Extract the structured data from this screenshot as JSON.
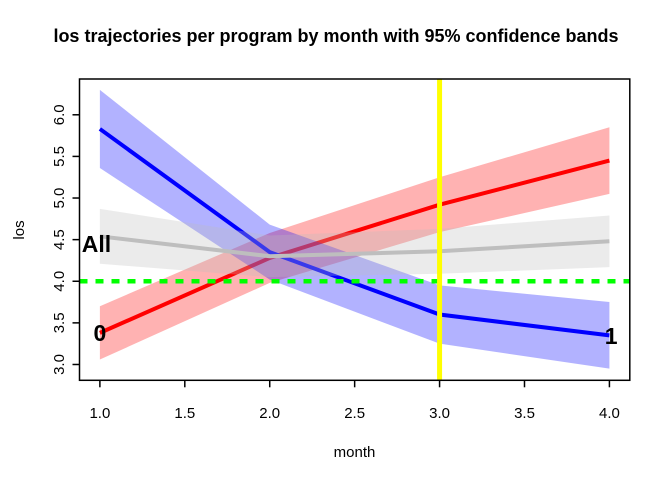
{
  "title": "los trajectories per program by month with 95% confidence bands",
  "x_axis": {
    "label": "month",
    "ticks": [
      "1.0",
      "1.5",
      "2.0",
      "2.5",
      "3.0",
      "3.5",
      "4.0"
    ],
    "values": [
      1,
      1.5,
      2,
      2.5,
      3,
      3.5,
      4
    ]
  },
  "y_axis": {
    "label": "los",
    "ticks": [
      "3.0",
      "3.5",
      "4.0",
      "4.5",
      "5.0",
      "5.5",
      "6.0"
    ],
    "values": [
      3,
      3.5,
      4,
      4.5,
      5,
      5.5,
      6
    ]
  },
  "chart_data": {
    "type": "line",
    "title": "los trajectories per program by month with 95% confidence bands",
    "xlabel": "month",
    "ylabel": "los",
    "x": [
      1,
      2,
      3,
      4
    ],
    "xlim": [
      0.88,
      4.12
    ],
    "ylim": [
      2.81,
      6.43
    ],
    "grid": false,
    "legend": "none",
    "series": [
      {
        "id": "program-0",
        "name": "program 0",
        "color": "#FF0000",
        "band_opacity": 0.3,
        "fit": [
          3.38,
          4.28,
          4.92,
          5.45
        ],
        "lower": [
          3.06,
          3.98,
          4.59,
          5.05
        ],
        "upper": [
          3.7,
          4.58,
          5.25,
          5.85
        ],
        "label": {
          "text": "0",
          "x": 1.0,
          "y": 3.38
        }
      },
      {
        "id": "program-1",
        "name": "program 1",
        "color": "#0000FF",
        "band_opacity": 0.3,
        "fit": [
          5.83,
          4.35,
          3.6,
          3.35
        ],
        "lower": [
          5.36,
          4.02,
          3.25,
          2.95
        ],
        "upper": [
          6.3,
          4.68,
          3.95,
          3.75
        ],
        "label": {
          "text": "1",
          "x": 4.01,
          "y": 3.34
        }
      },
      {
        "id": "all",
        "name": "All",
        "color": "#BEBEBE",
        "band_opacity": 0.3,
        "fit": [
          4.54,
          4.3,
          4.36,
          4.48
        ],
        "lower": [
          4.21,
          4.05,
          4.09,
          4.17
        ],
        "upper": [
          4.87,
          4.55,
          4.63,
          4.79
        ],
        "label": {
          "text": "All",
          "x": 0.98,
          "y": 4.45
        }
      }
    ],
    "reference_lines": [
      {
        "orientation": "horizontal",
        "value": 4.0,
        "color": "#00FF00",
        "style": "dashed",
        "width": 4.5
      },
      {
        "orientation": "vertical",
        "value": 3.0,
        "color": "#FFFF00",
        "style": "solid",
        "width": 5
      }
    ]
  }
}
